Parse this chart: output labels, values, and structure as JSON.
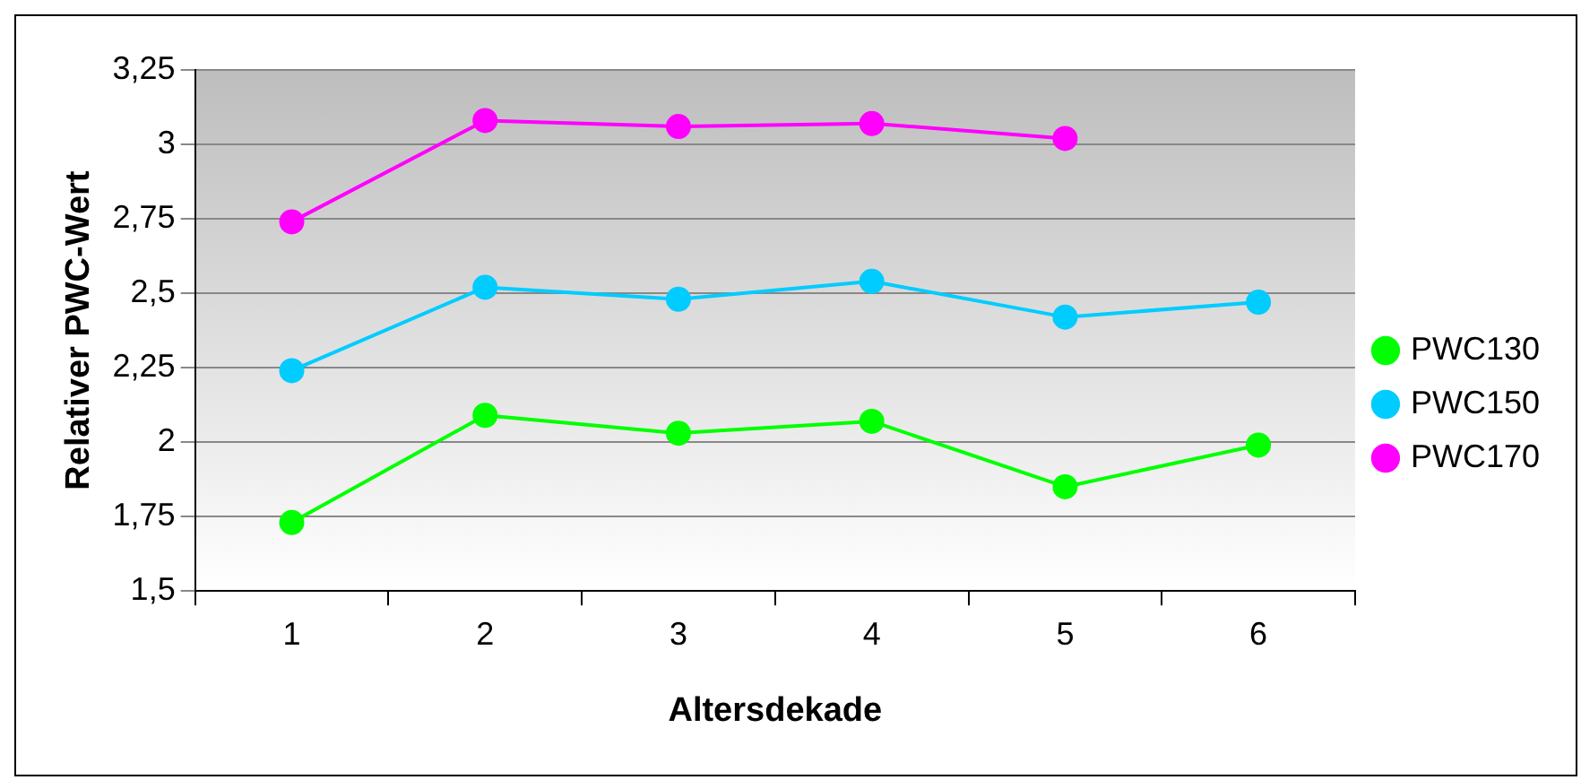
{
  "chart_data": {
    "type": "line",
    "xlabel": "Altersdekade",
    "ylabel": "Relativer PWC-Wert",
    "categories": [
      "1",
      "2",
      "3",
      "4",
      "5",
      "6"
    ],
    "series": [
      {
        "name": "PWC130",
        "color": "#00ff00",
        "values": [
          1.73,
          2.09,
          2.03,
          2.07,
          1.85,
          1.99
        ]
      },
      {
        "name": "PWC150",
        "color": "#00ccff",
        "values": [
          2.24,
          2.52,
          2.48,
          2.54,
          2.42,
          2.47
        ]
      },
      {
        "name": "PWC170",
        "color": "#ff00ff",
        "values": [
          2.74,
          3.08,
          3.06,
          3.07,
          3.02,
          null
        ]
      }
    ],
    "ylim": [
      1.5,
      3.25
    ],
    "yticks": [
      {
        "value": 1.5,
        "label": "1,5"
      },
      {
        "value": 1.75,
        "label": "1,75"
      },
      {
        "value": 2,
        "label": "2"
      },
      {
        "value": 2.25,
        "label": "2,25"
      },
      {
        "value": 2.5,
        "label": "2,5"
      },
      {
        "value": 2.75,
        "label": "2,75"
      },
      {
        "value": 3,
        "label": "3"
      },
      {
        "value": 3.25,
        "label": "3,25"
      }
    ],
    "grid": "y",
    "legend": "right",
    "marker": "circle",
    "line_style": "solid"
  }
}
